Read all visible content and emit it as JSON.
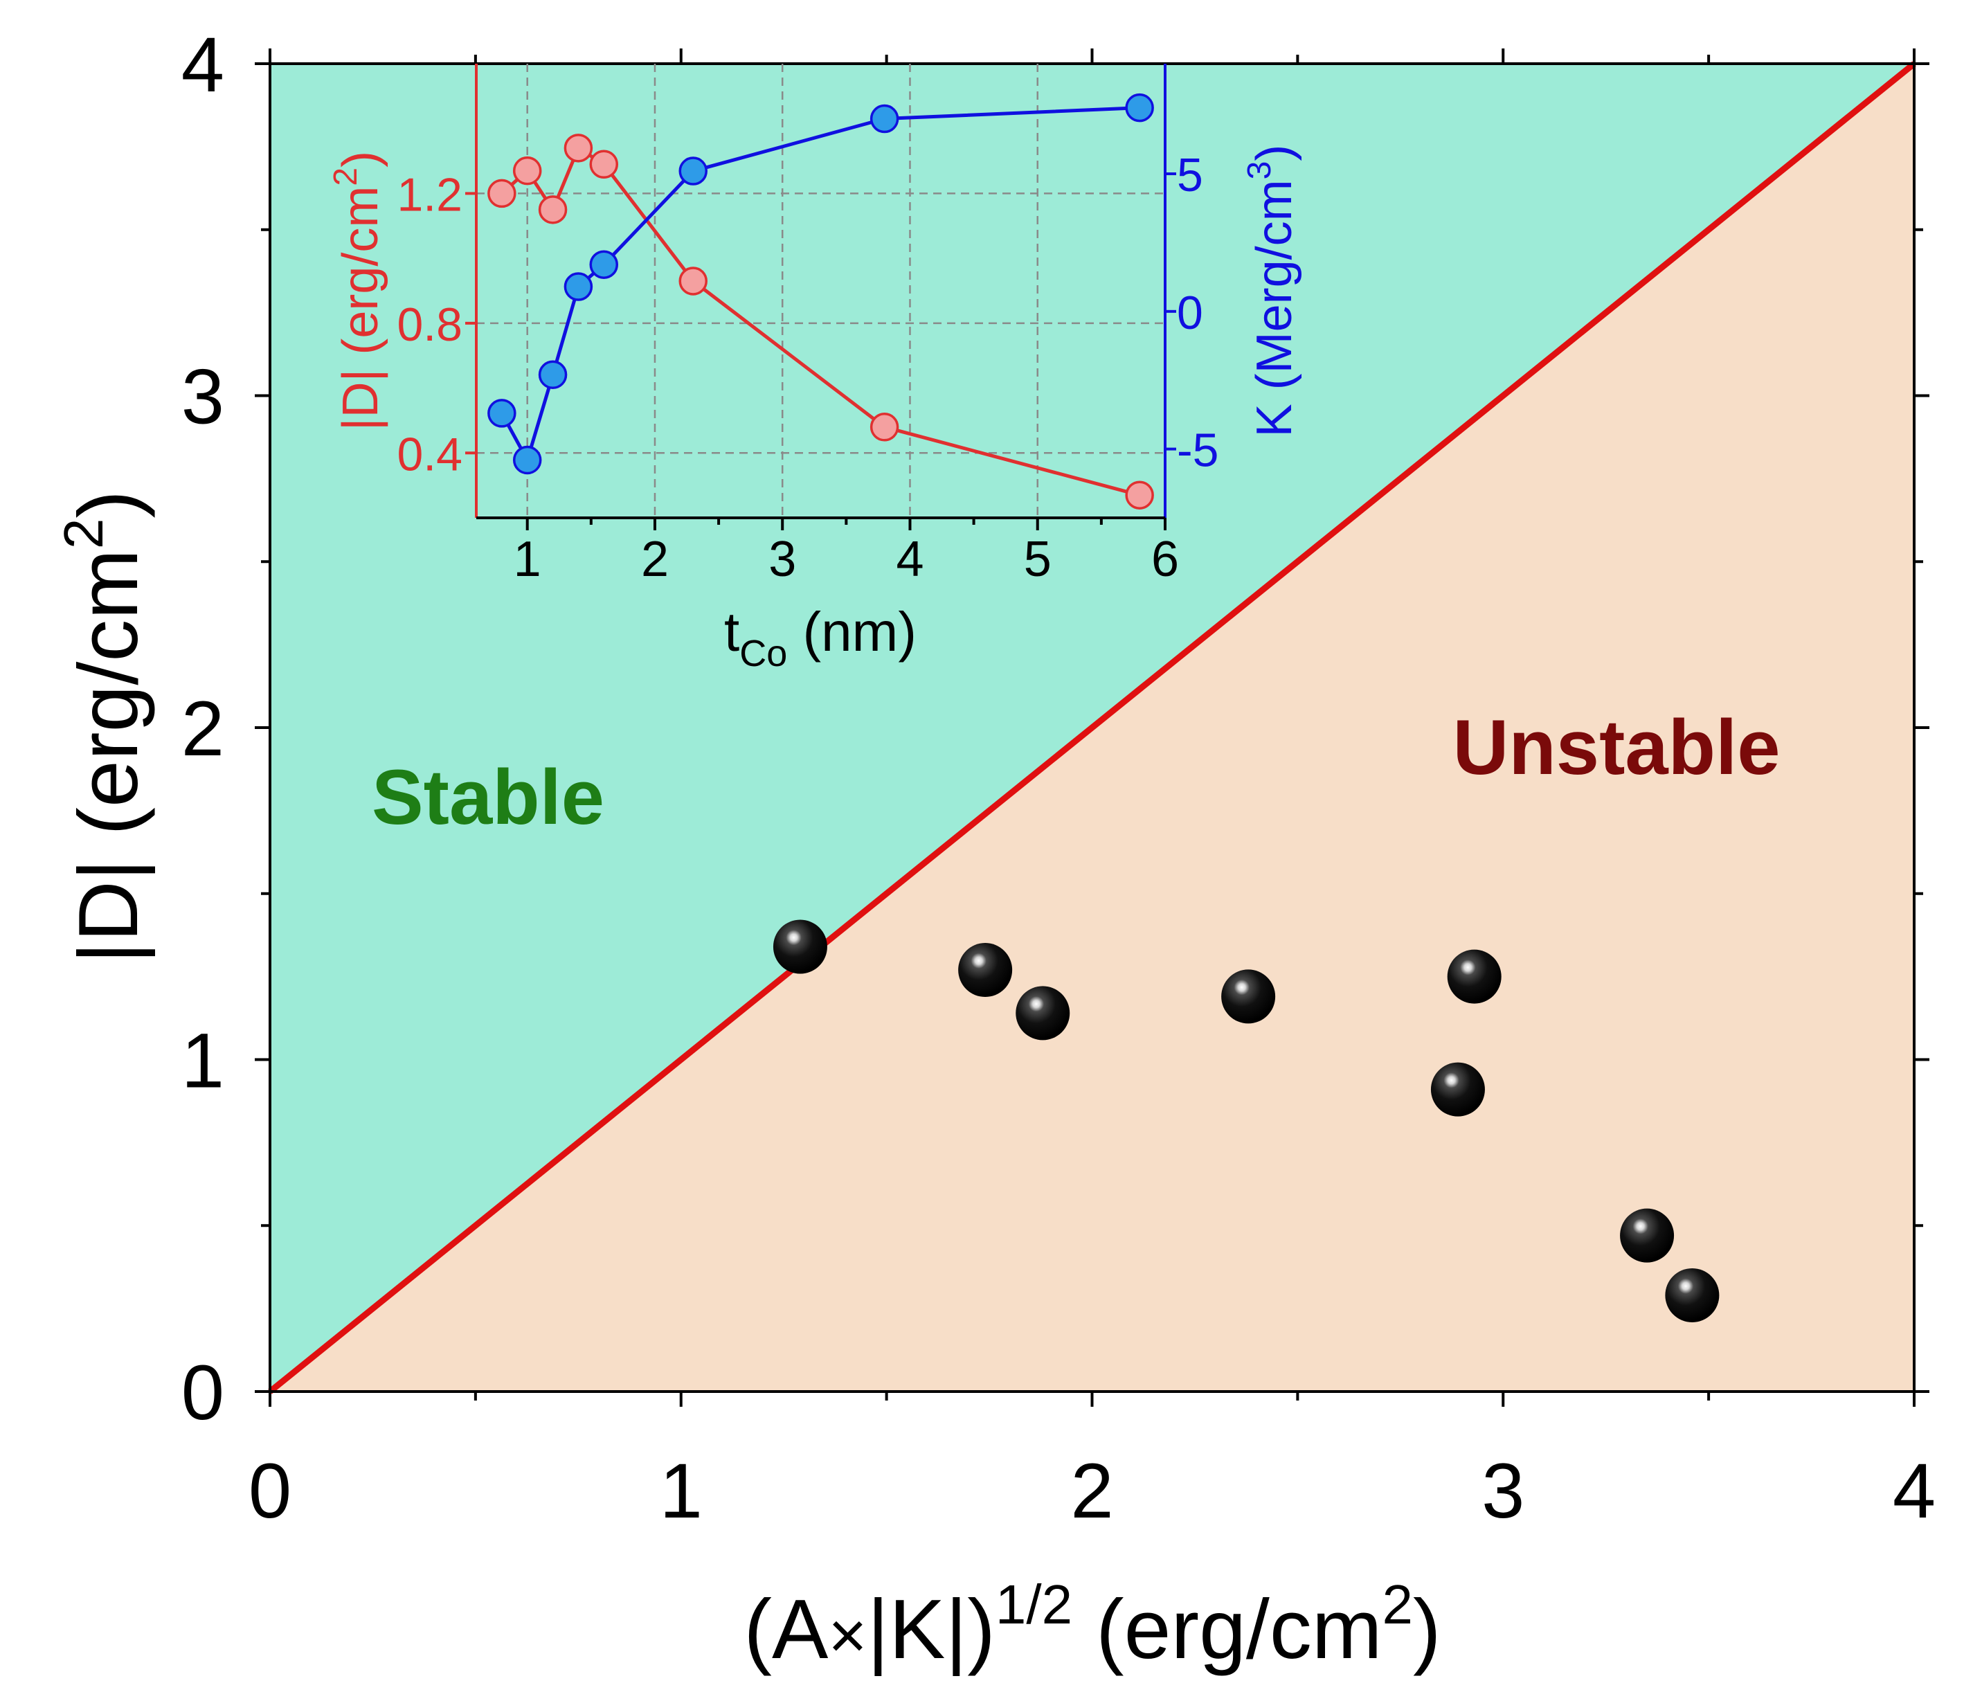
{
  "colors": {
    "stable_bg": "#9DEBD7",
    "unstable_bg": "#F7DEC8",
    "diagonal": "#E01010",
    "stable_text": "#1E7E16",
    "unstable_text": "#7A0A0A",
    "inset_red": "#E03030",
    "inset_red_fill": "#F4A0A0",
    "inset_blue": "#1010E0",
    "inset_blue_fill": "#2E9BE8",
    "grid": "#8A8A8A",
    "axis": "#000000"
  },
  "chart_data": [
    {
      "type": "scatter",
      "id": "main",
      "xlabel": {
        "pre": "(A",
        "times": "×",
        "post": "|K|)",
        "sup": "1/2",
        "unit_pre": " (erg/cm",
        "unit_sup": "2",
        "unit_post": ")"
      },
      "ylabel": {
        "pre": "|D| (erg/cm",
        "sup": "2",
        "post": ")"
      },
      "xlim": [
        0,
        4
      ],
      "ylim": [
        0,
        4
      ],
      "x_ticks": [
        0,
        1,
        2,
        3,
        4
      ],
      "y_ticks": [
        0,
        1,
        2,
        3,
        4
      ],
      "x_tick_labels": [
        "0",
        "1",
        "2",
        "3",
        "4"
      ],
      "y_tick_labels": [
        "0",
        "1",
        "2",
        "3",
        "4"
      ],
      "regions": {
        "stable_label": "Stable",
        "unstable_label": "Unstable"
      },
      "boundary_line": {
        "from": [
          0,
          0
        ],
        "to": [
          4,
          4
        ]
      },
      "points": [
        {
          "x": 1.29,
          "y": 1.34
        },
        {
          "x": 1.74,
          "y": 1.27
        },
        {
          "x": 1.88,
          "y": 1.14
        },
        {
          "x": 2.38,
          "y": 1.19
        },
        {
          "x": 2.93,
          "y": 1.25
        },
        {
          "x": 2.89,
          "y": 0.91
        },
        {
          "x": 3.35,
          "y": 0.47
        },
        {
          "x": 3.46,
          "y": 0.29
        }
      ]
    },
    {
      "type": "line",
      "id": "inset",
      "xlabel": {
        "pre": "t",
        "sub": "Co",
        "post": " (nm)"
      },
      "xlim": [
        0.6,
        6
      ],
      "x_ticks": [
        1,
        2,
        3,
        4,
        5,
        6
      ],
      "x_tick_labels": [
        "1",
        "2",
        "3",
        "4",
        "5",
        "6"
      ],
      "left_axis": {
        "label_pre": "|D| (erg/cm",
        "label_sup": "2",
        "label_post": ")",
        "ylim": [
          0.2,
          1.6
        ],
        "ticks": [
          0.4,
          0.8,
          1.2
        ],
        "tick_labels": [
          "0.4",
          "0.8",
          "1.2"
        ]
      },
      "right_axis": {
        "label_pre": "K (Merg/cm",
        "label_sup": "3",
        "label_post": ")",
        "ylim": [
          -7.5,
          9
        ],
        "ticks": [
          -5,
          0,
          5
        ],
        "tick_labels": [
          "-5",
          "0",
          "5"
        ]
      },
      "series": [
        {
          "name": "|D|",
          "axis": "left",
          "x": [
            0.8,
            1.0,
            1.2,
            1.4,
            1.6,
            2.3,
            3.8,
            5.8
          ],
          "values": [
            1.2,
            1.27,
            1.15,
            1.34,
            1.29,
            0.93,
            0.48,
            0.27
          ]
        },
        {
          "name": "K",
          "axis": "right",
          "x": [
            0.8,
            1.0,
            1.2,
            1.4,
            1.6,
            2.3,
            3.8,
            5.8
          ],
          "values": [
            -3.7,
            -5.4,
            -2.3,
            0.9,
            1.7,
            5.1,
            7.0,
            7.4
          ]
        }
      ]
    }
  ]
}
